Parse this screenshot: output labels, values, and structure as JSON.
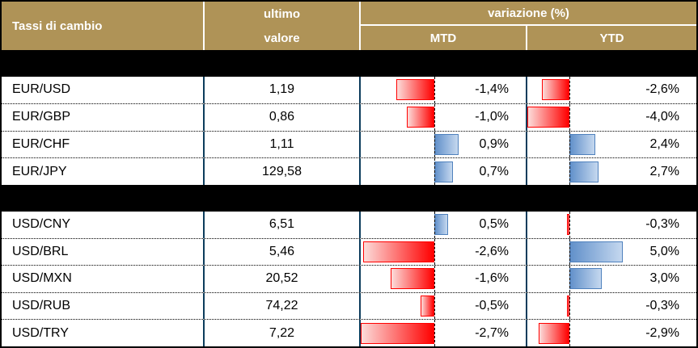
{
  "header": {
    "title": "Tassi di cambio",
    "value_col_line1": "ultimo",
    "value_col_line2": "valore",
    "variation": "variazione (%)",
    "mtd": "MTD",
    "ytd": "YTD"
  },
  "colors": {
    "header_gold": "#AF9357",
    "header_text": "#FFFFFF",
    "column_divider_navy": "#0C3C5C",
    "negative_bar_red": "#FF0000",
    "negative_bar_red_light": "#FCDCDA",
    "positive_bar_blue_border": "#4F81BD",
    "positive_bar_blue_solid": "#6190CA",
    "positive_bar_blue_light": "#C5D8EF",
    "section_band_black": "#000000"
  },
  "chart_data": {
    "type": "table",
    "title": "Tassi di cambio",
    "columns": [
      "Tassi di cambio",
      "ultimo valore",
      "variazione (%) MTD",
      "variazione (%) YTD"
    ],
    "bar_axes": {
      "mtd": {
        "min": -2.7,
        "max": 0.9
      },
      "ytd": {
        "min": -4.0,
        "max": 5.0
      }
    },
    "layout_hints": "negative values: red gradient bar extending left of dashed zero axis; positive values: blue gradient bar extending right; black separator band between the two currency sections",
    "sections": [
      {
        "rows": [
          {
            "pair": "EUR/USD",
            "value": "1,19",
            "mtd": -1.4,
            "mtd_label": "-1,4%",
            "ytd": -2.6,
            "ytd_label": "-2,6%"
          },
          {
            "pair": "EUR/GBP",
            "value": "0,86",
            "mtd": -1.0,
            "mtd_label": "-1,0%",
            "ytd": -4.0,
            "ytd_label": "-4,0%"
          },
          {
            "pair": "EUR/CHF",
            "value": "1,11",
            "mtd": 0.9,
            "mtd_label": "0,9%",
            "ytd": 2.4,
            "ytd_label": "2,4%"
          },
          {
            "pair": "EUR/JPY",
            "value": "129,58",
            "mtd": 0.7,
            "mtd_label": "0,7%",
            "ytd": 2.7,
            "ytd_label": "2,7%"
          }
        ]
      },
      {
        "rows": [
          {
            "pair": "USD/CNY",
            "value": "6,51",
            "mtd": 0.5,
            "mtd_label": "0,5%",
            "ytd": -0.3,
            "ytd_label": "-0,3%"
          },
          {
            "pair": "USD/BRL",
            "value": "5,46",
            "mtd": -2.6,
            "mtd_label": "-2,6%",
            "ytd": 5.0,
            "ytd_label": "5,0%"
          },
          {
            "pair": "USD/MXN",
            "value": "20,52",
            "mtd": -1.6,
            "mtd_label": "-1,6%",
            "ytd": 3.0,
            "ytd_label": "3,0%"
          },
          {
            "pair": "USD/RUB",
            "value": "74,22",
            "mtd": -0.5,
            "mtd_label": "-0,5%",
            "ytd": -0.3,
            "ytd_label": "-0,3%"
          },
          {
            "pair": "USD/TRY",
            "value": "7,22",
            "mtd": -2.7,
            "mtd_label": "-2,7%",
            "ytd": -2.9,
            "ytd_label": "-2,9%"
          }
        ]
      }
    ]
  }
}
